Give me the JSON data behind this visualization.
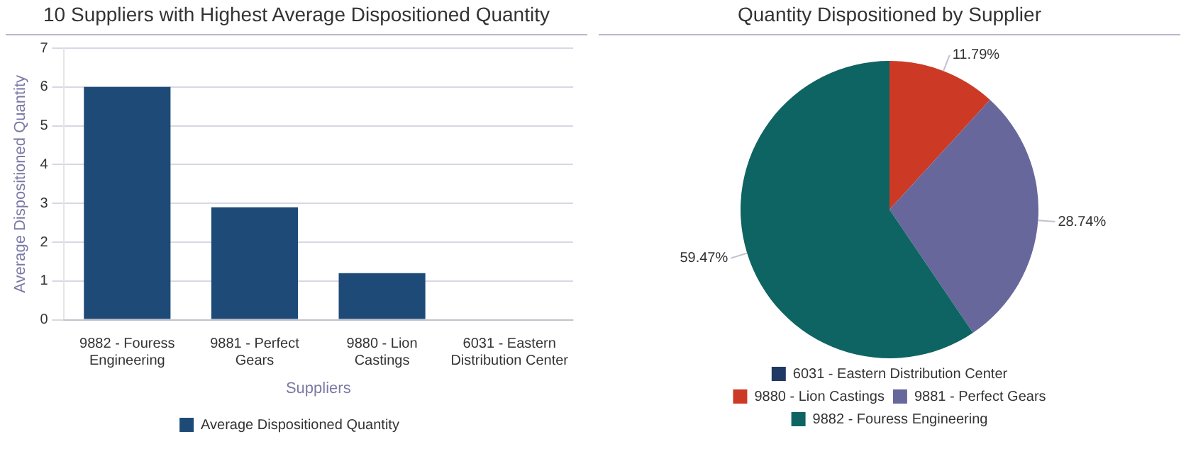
{
  "chart_data": [
    {
      "type": "bar",
      "title": "10 Suppliers with Highest Average Dispositioned Quantity",
      "xlabel": "Suppliers",
      "ylabel": "Average Dispositioned Quantity",
      "categories": [
        [
          "9882 - Fouress",
          "Engineering"
        ],
        [
          "9881 - Perfect",
          "Gears"
        ],
        [
          "9880 - Lion",
          "Castings"
        ],
        [
          "6031 - Eastern",
          "Distribution Center"
        ]
      ],
      "series": [
        {
          "name": "Average Dispositioned Quantity",
          "color": "#1e4a78",
          "values": [
            6,
            2.9,
            1.2,
            0
          ]
        }
      ],
      "ylim": [
        0,
        7
      ],
      "yticks": [
        0,
        1,
        2,
        3,
        4,
        5,
        6,
        7
      ],
      "grid": "y",
      "legend": "bottom"
    },
    {
      "type": "pie",
      "title": "Quantity Dispositioned by Supplier",
      "categories": [
        "6031 - Eastern Distribution Center",
        "9880 - Lion Castings",
        "9881 - Perfect Gears",
        "9882 - Fouress Engineering"
      ],
      "values": [
        0,
        11.79,
        28.74,
        59.47
      ],
      "colors": [
        "#1f3864",
        "#cc3a25",
        "#67679b",
        "#0e6462"
      ],
      "value_labels": [
        null,
        "11.79%",
        "28.74%",
        "59.47%"
      ],
      "legend": "bottom"
    }
  ]
}
